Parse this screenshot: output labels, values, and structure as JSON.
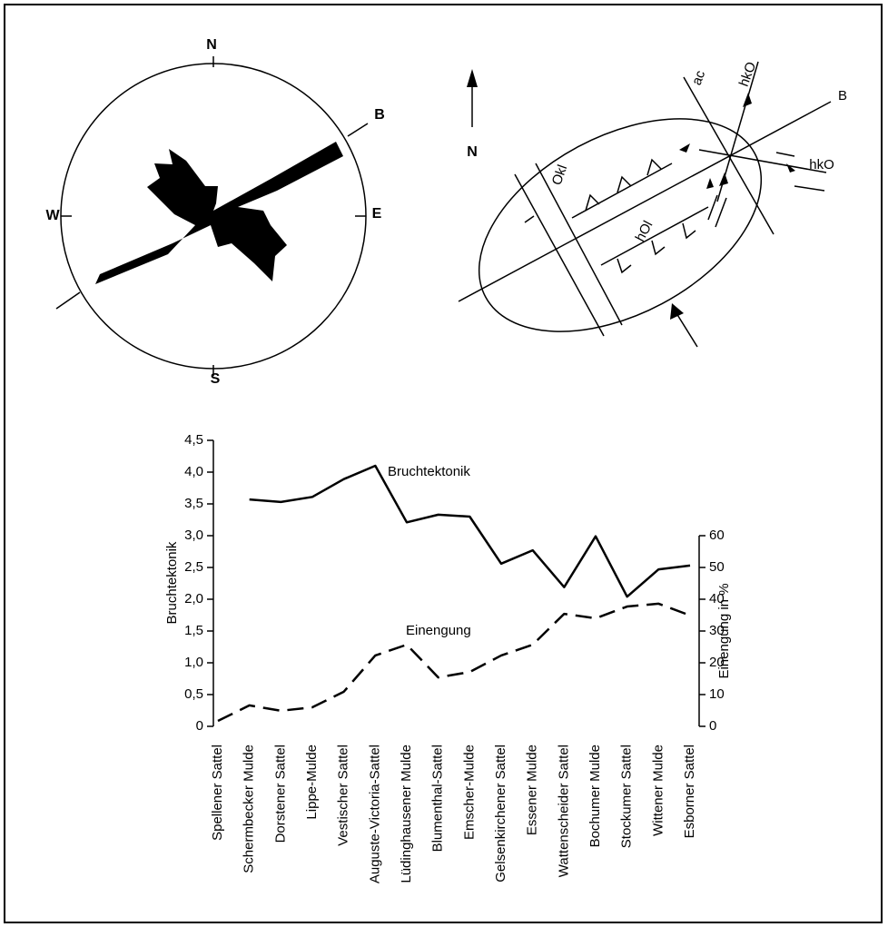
{
  "rose": {
    "labels": {
      "north": "N",
      "east": "E",
      "south": "S",
      "west": "W",
      "axis": "B"
    }
  },
  "sketch": {
    "labels": {
      "north": "N",
      "ac": "ac",
      "hko_top": "hkO",
      "axis": "B",
      "okl": "Okl",
      "hol": "hOl",
      "hko_right": "hkO"
    }
  },
  "chart_data": {
    "type": "line",
    "categories": [
      "Spellener Sattel",
      "Schermbecker Mulde",
      "Dorstener Sattel",
      "Lippe-Mulde",
      "Vestischer Sattel",
      "Auguste-Victoria-Sattel",
      "Lüdinghausener Mulde",
      "Blumenthal-Sattel",
      "Emscher-Mulde",
      "Gelsenkirchener Sattel",
      "Essener Mulde",
      "Wattenscheider Sattel",
      "Bochumer Mulde",
      "Stockumer Sattel",
      "Wittener Mulde",
      "Esborner Sattel"
    ],
    "series": [
      {
        "name": "Bruchtektonik",
        "color": "#000000",
        "line_style": "solid",
        "values": [
          null,
          3.57,
          3.53,
          3.61,
          3.89,
          4.1,
          3.21,
          3.33,
          3.3,
          2.56,
          2.77,
          2.19,
          2.99,
          2.04,
          2.47,
          2.53
        ]
      },
      {
        "name": "Einengung",
        "color": "#000000",
        "line_style": "dashed",
        "axis": "y2",
        "values": [
          1.7,
          6.6,
          4.9,
          6,
          10.9,
          22.3,
          25.7,
          15.4,
          17.1,
          22.3,
          25.7,
          35.4,
          34,
          37.7,
          38.6,
          34.9
        ]
      }
    ],
    "ylabel": "Bruchtektonik",
    "y2label": "Einengung in %",
    "ylim": [
      0,
      4.5
    ],
    "yticks": [
      0,
      {
        "value": 0.5,
        "label": "0,5"
      },
      {
        "value": 1,
        "label": "1,0"
      },
      {
        "value": 1.5,
        "label": "1,5"
      },
      {
        "value": 2,
        "label": "2,0"
      },
      {
        "value": 2.5,
        "label": "2,5"
      },
      {
        "value": 3,
        "label": "3,0"
      },
      {
        "value": 3.5,
        "label": "3,5"
      },
      {
        "value": 4,
        "label": "4,0"
      },
      {
        "value": 4.5,
        "label": "4,5"
      }
    ],
    "y2lim": [
      0,
      60
    ],
    "y2ticks": [
      0,
      10,
      20,
      30,
      40,
      50,
      60
    ],
    "grid": false
  }
}
